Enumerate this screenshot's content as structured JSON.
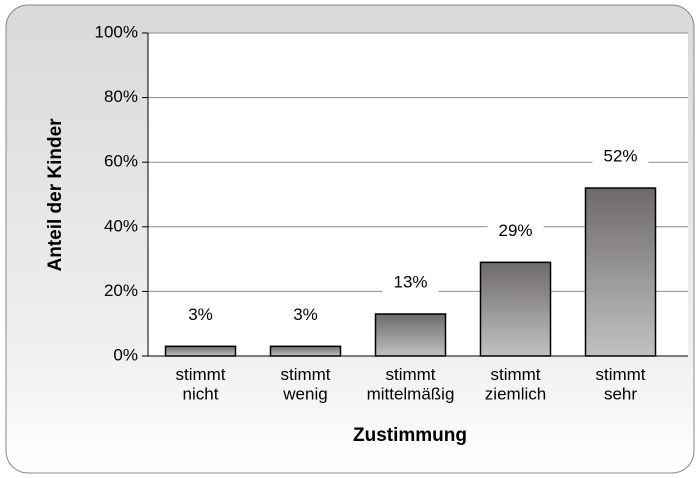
{
  "chart_data": {
    "type": "bar",
    "x_label": "Zustimmung",
    "y_label": "Anteil der Kinder",
    "categories": [
      "stimmt\nnicht",
      "stimmt\nwenig",
      "stimmt\nmittelmäßig",
      "stimmt\nziemlich",
      "stimmt\nsehr"
    ],
    "values": [
      3,
      3,
      13,
      29,
      52
    ],
    "value_labels": [
      "3%",
      "3%",
      "13%",
      "29%",
      "52%"
    ],
    "ylim": [
      0,
      100
    ],
    "yticks": [
      {
        "value": 0,
        "label": "0%"
      },
      {
        "value": 20,
        "label": "20%"
      },
      {
        "value": 40,
        "label": "40%"
      },
      {
        "value": 60,
        "label": "60%"
      },
      {
        "value": 80,
        "label": "80%"
      },
      {
        "value": 100,
        "label": "100%"
      }
    ],
    "grid": true
  }
}
